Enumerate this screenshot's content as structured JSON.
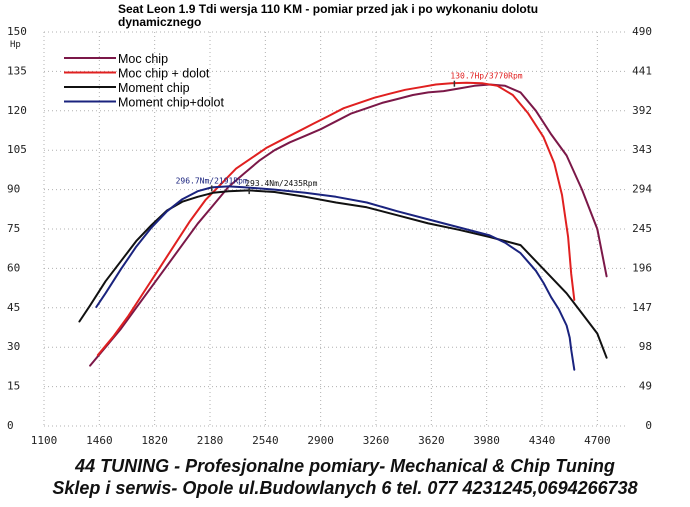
{
  "chart_data": {
    "type": "line",
    "title": "Seat Leon 1.9 Tdi wersja 110 KM - pomiar przed jak i po wykonaniu dolotu dynamicznego",
    "title_lines": [
      "Seat Leon 1.9 Tdi wersja 110 KM - pomiar przed jak i po wykonaniu dolotu",
      "dynamicznego"
    ],
    "ylabel": "Hp",
    "xlim": [
      1100,
      4880
    ],
    "x_ticks": [
      1100,
      1460,
      1820,
      2180,
      2540,
      2900,
      3260,
      3620,
      3980,
      4340,
      4700
    ],
    "ylim": [
      0,
      150
    ],
    "y_ticks": [
      0,
      15,
      30,
      45,
      60,
      75,
      90,
      105,
      120,
      135,
      150
    ],
    "y2lim": [
      0,
      490
    ],
    "y2_ticks": [
      0,
      49,
      98,
      147,
      196,
      245,
      294,
      343,
      392,
      441,
      490
    ],
    "grid": true,
    "legend_position": "top-left",
    "series": [
      {
        "name": "Moc chip",
        "axis": "left",
        "color": "#7b1848",
        "x": [
          1400,
          1500,
          1600,
          1700,
          1800,
          1900,
          2000,
          2100,
          2200,
          2300,
          2400,
          2500,
          2600,
          2700,
          2800,
          2900,
          3000,
          3100,
          3200,
          3300,
          3400,
          3500,
          3600,
          3700,
          3800,
          3900,
          4000,
          4100,
          4200,
          4300,
          4400,
          4500,
          4600,
          4700,
          4760
        ],
        "y": [
          23,
          30,
          37,
          45,
          53,
          61,
          69,
          77,
          84,
          91,
          96,
          101,
          105,
          108,
          110.5,
          113,
          116,
          119,
          121,
          123,
          124.5,
          126,
          127,
          127.5,
          128.5,
          129.5,
          130,
          129.5,
          127,
          120,
          111,
          103,
          90,
          75,
          57
        ]
      },
      {
        "name": "Moc chip + dolot",
        "axis": "left",
        "color": "#e02020",
        "x": [
          1450,
          1550,
          1650,
          1750,
          1850,
          1950,
          2050,
          2150,
          2250,
          2350,
          2450,
          2550,
          2650,
          2750,
          2850,
          2950,
          3050,
          3150,
          3250,
          3350,
          3450,
          3550,
          3650,
          3750,
          3850,
          3950,
          4050,
          4150,
          4250,
          4350,
          4420,
          4470,
          4510,
          4530,
          4550
        ],
        "y": [
          27,
          34,
          42,
          51,
          60,
          69,
          78,
          86,
          92,
          98,
          102,
          106,
          109,
          112,
          115,
          118,
          121,
          123,
          125,
          126.5,
          128,
          129,
          130,
          130.5,
          130.7,
          130.5,
          129.5,
          126,
          119,
          110,
          100,
          88,
          72,
          58,
          48
        ]
      },
      {
        "name": "Moment chip",
        "axis": "right",
        "color": "#111111",
        "x": [
          1330,
          1400,
          1500,
          1600,
          1700,
          1800,
          1900,
          2000,
          2100,
          2200,
          2300,
          2435,
          2600,
          2800,
          3000,
          3200,
          3400,
          3600,
          3800,
          4000,
          4200,
          4300,
          4400,
          4500,
          4600,
          4700,
          4760
        ],
        "y": [
          130,
          150,
          180,
          205,
          230,
          250,
          268,
          279,
          285,
          290,
          292,
          293,
          291,
          285,
          278,
          272,
          262,
          252,
          244,
          235,
          225,
          205,
          185,
          165,
          140,
          115,
          85
        ]
      },
      {
        "name": "Moment chip+dolot",
        "axis": "right",
        "color": "#1a237e",
        "x": [
          1440,
          1500,
          1600,
          1700,
          1800,
          1900,
          2000,
          2100,
          2191,
          2300,
          2400,
          2600,
          2800,
          3000,
          3200,
          3400,
          3600,
          3800,
          4000,
          4100,
          4200,
          4300,
          4350,
          4400,
          4450,
          4500,
          4520,
          4530,
          4550
        ],
        "y": [
          148,
          165,
          195,
          223,
          247,
          267,
          282,
          292,
          296.7,
          298,
          297,
          294,
          290,
          285,
          278,
          267,
          257,
          247,
          237,
          228,
          215,
          193,
          178,
          160,
          145,
          125,
          110,
          95,
          70
        ]
      }
    ],
    "annotations": [
      {
        "text": "130.7Hp/3770Rpm",
        "x": 3770,
        "y": 130.7,
        "axis": "left",
        "color": "#e02020",
        "anchor": "start"
      },
      {
        "text": "296.7Nm/2191Rpm",
        "x": 2191,
        "y": 296.7,
        "axis": "right",
        "color": "#1a237e",
        "anchor": "middle"
      },
      {
        "text": "293.4Nm/2435Rpm",
        "x": 2435,
        "y": 293.4,
        "axis": "right",
        "color": "#111111",
        "anchor": "start"
      }
    ]
  },
  "footer": {
    "line1": "44 TUNING - Profesjonalne pomiary- Mechanical & Chip Tuning",
    "line2": "Sklep i serwis- Opole ul.Budowlanych 6  tel. 077 4231245,0694266738"
  }
}
